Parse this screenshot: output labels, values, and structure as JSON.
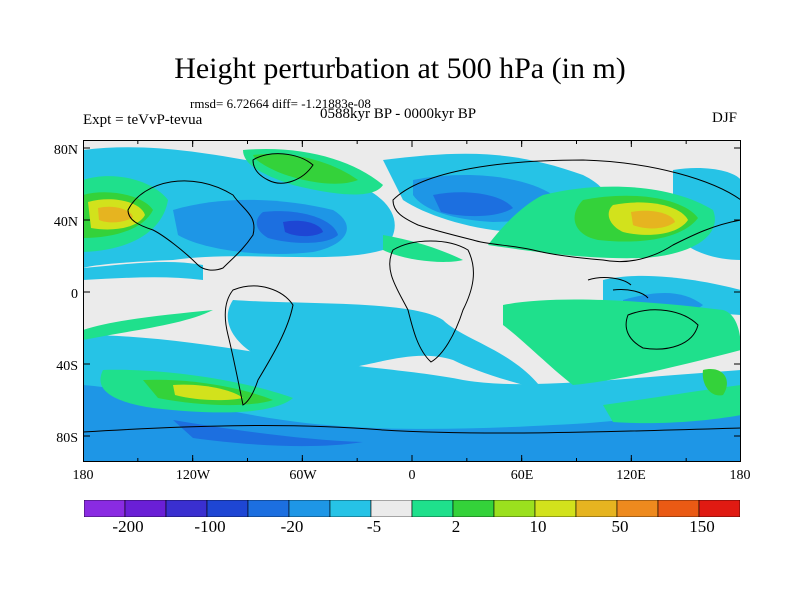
{
  "title": "Height perturbation at 500 hPa (in m)",
  "stats": "rmsd= 6.72664 diff= -1.21883e-08",
  "period": "0588kyr BP - 0000kyr BP",
  "experiment": "Expt = teVvP-tevua",
  "season": "DJF",
  "y_ticks": [
    "80N",
    "40N",
    "0",
    "40S",
    "80S"
  ],
  "x_ticks": [
    "180",
    "120W",
    "60W",
    "0",
    "60E",
    "120E",
    "180"
  ],
  "colorbar": {
    "labels": [
      "-200",
      "-100",
      "-20",
      "-5",
      "2",
      "10",
      "50",
      "150"
    ],
    "colors": [
      "#8a2be2",
      "#6a1fd6",
      "#3a2fd0",
      "#1e46d4",
      "#1c6fe0",
      "#1e96e6",
      "#26c3e6",
      "#ebebeb",
      "#1fe08c",
      "#34d23a",
      "#9be01e",
      "#d2e21c",
      "#e6b420",
      "#ee8a1e",
      "#ea5a14",
      "#e01a12"
    ]
  },
  "map_colors": {
    "background": "#ebebeb",
    "neg_light": "#26c3e6",
    "neg_mid": "#1e96e6",
    "neg_strong": "#1c6fe0",
    "neg_deep": "#1e46d4",
    "pos_light": "#1fe08c",
    "pos_mid": "#34d23a",
    "pos_yellow": "#d2e21c",
    "pos_orange": "#e6b420",
    "coast": "#000000"
  }
}
